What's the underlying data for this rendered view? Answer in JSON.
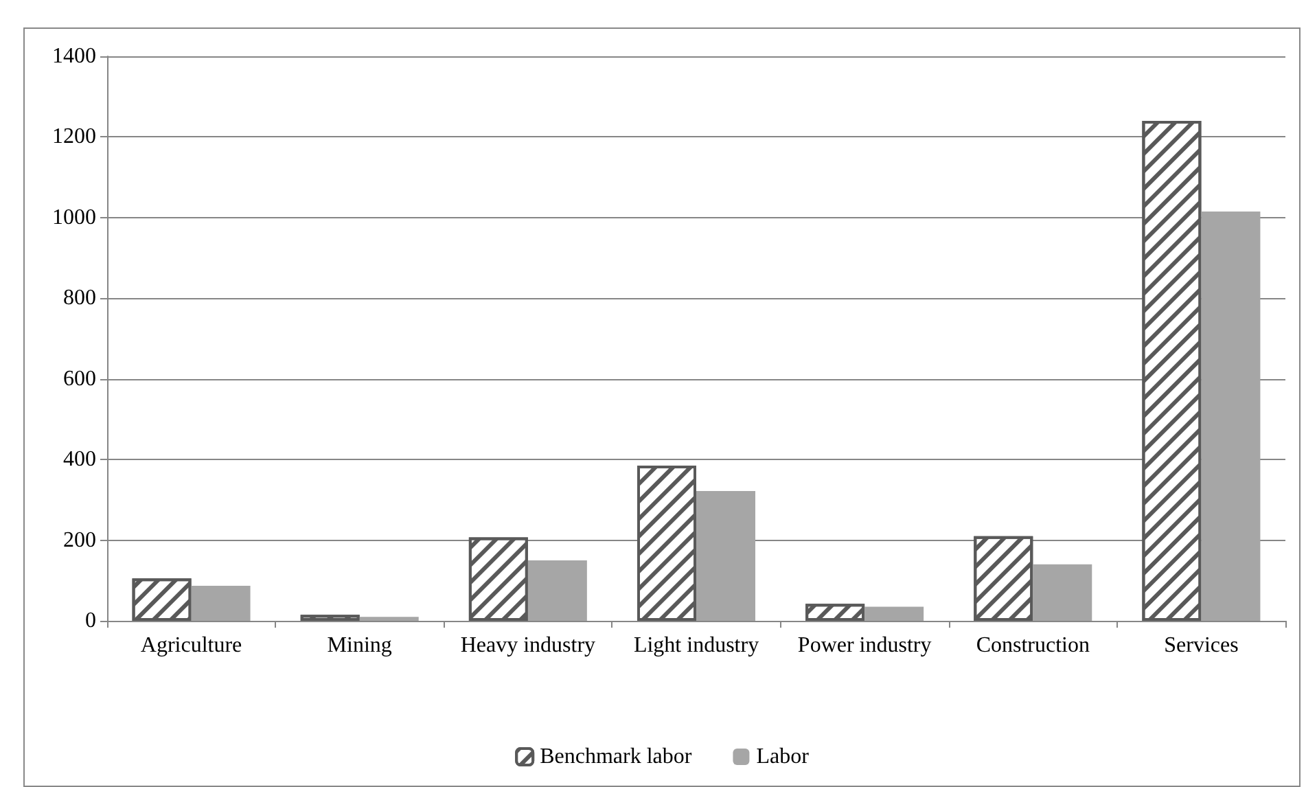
{
  "chart_data": {
    "type": "bar",
    "categories": [
      "Agriculture",
      "Mining",
      "Heavy industry",
      "Light industry",
      "Power industry",
      "Construction",
      "Services"
    ],
    "series": [
      {
        "name": "Benchmark labor",
        "color": "#595959",
        "values": [
          105,
          15,
          207,
          385,
          42,
          210,
          1240
        ]
      },
      {
        "name": "Labor",
        "color": "#a6a6a6",
        "values": [
          87,
          10,
          150,
          322,
          35,
          140,
          1015
        ]
      }
    ],
    "ylim": [
      0,
      1400
    ],
    "yticks": [
      0,
      200,
      400,
      600,
      800,
      1000,
      1200,
      1400
    ],
    "grid": "y",
    "legend": "bottom"
  }
}
